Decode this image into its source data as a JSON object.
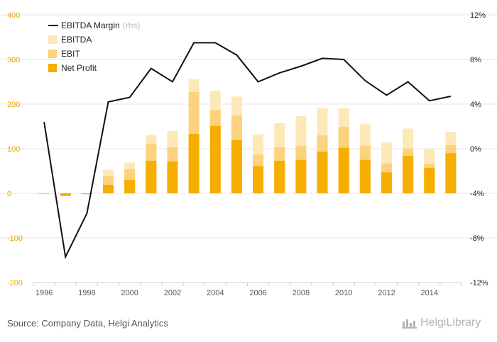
{
  "footer": {
    "source": "Source: Company Data, Helgi Analytics",
    "brand": "HelgiLibrary"
  },
  "colors": {
    "ebitda": "#fde9b7",
    "ebit": "#fcd27c",
    "net_profit": "#f6ae00",
    "margin_line": "#111111",
    "grid": "#e6e6e6",
    "left_axis_text": "#e6a800"
  },
  "chart_data": {
    "type": "bar",
    "categories": [
      "1996",
      "1997",
      "1998",
      "1999",
      "2000",
      "2001",
      "2002",
      "2003",
      "2004",
      "2005",
      "2006",
      "2007",
      "2008",
      "2009",
      "2010",
      "2011",
      "2012",
      "2013",
      "2014",
      "2015"
    ],
    "x_tick_labels": [
      "1996",
      "1998",
      "2000",
      "2002",
      "2004",
      "2006",
      "2008",
      "2010",
      "2012",
      "2014"
    ],
    "ylim_left": [
      -200,
      400
    ],
    "yticks_left": [
      -200,
      -100,
      0,
      100,
      200,
      300,
      400
    ],
    "ylim_right": [
      -12,
      12
    ],
    "yticks_right": [
      "-12%",
      "-8%",
      "-4%",
      "0%",
      "4%",
      "8%",
      "12%"
    ],
    "legend": {
      "position": "top-left",
      "items": [
        {
          "label": "EBITDA Margin",
          "note": "(rhs)",
          "kind": "line"
        },
        {
          "label": "EBITDA",
          "kind": "bar"
        },
        {
          "label": "EBIT",
          "kind": "bar"
        },
        {
          "label": "Net Profit",
          "kind": "bar"
        }
      ]
    },
    "series": [
      {
        "name": "EBITDA",
        "axis": "left",
        "values": [
          1,
          -3,
          0,
          53,
          69,
          131,
          140,
          256,
          230,
          217,
          132,
          157,
          173,
          191,
          191,
          155,
          114,
          145,
          100,
          138
        ]
      },
      {
        "name": "EBIT",
        "axis": "left",
        "values": [
          0,
          -5,
          -1,
          38,
          54,
          111,
          103,
          227,
          187,
          174,
          87,
          104,
          106,
          130,
          149,
          106,
          67,
          100,
          65,
          108
        ]
      },
      {
        "name": "Net Profit",
        "axis": "left",
        "values": [
          0,
          -6,
          -2,
          19,
          30,
          73,
          71,
          133,
          151,
          119,
          61,
          73,
          75,
          93,
          102,
          75,
          47,
          84,
          57,
          90
        ]
      },
      {
        "name": "EBITDA Margin",
        "axis": "right",
        "unit": "%",
        "values": [
          2.4,
          -9.7,
          -5.8,
          4.2,
          4.6,
          7.2,
          6.0,
          9.5,
          9.5,
          8.4,
          6.0,
          6.8,
          7.4,
          8.1,
          8.0,
          6.1,
          4.8,
          6.0,
          4.3,
          4.7
        ]
      }
    ]
  }
}
